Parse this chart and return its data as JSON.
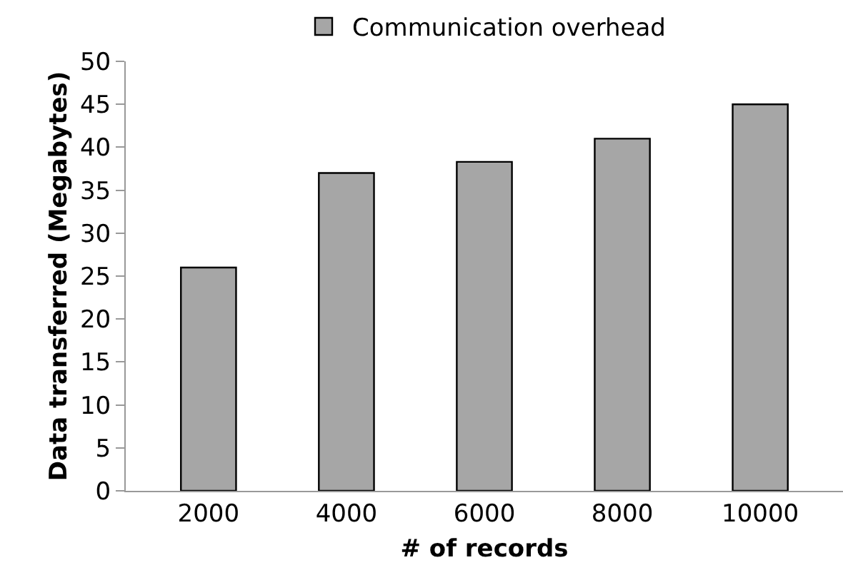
{
  "chart_data": {
    "type": "bar",
    "xlabel": "# of records",
    "ylabel": "Data transferred (Megabytes)",
    "categories": [
      "2000",
      "4000",
      "6000",
      "8000",
      "10000"
    ],
    "series": [
      {
        "name": "Communication overhead",
        "color": "#a6a6a6",
        "values": [
          26,
          37,
          38.3,
          41,
          45
        ]
      }
    ],
    "ylim": [
      0,
      50
    ],
    "yticks": [
      0,
      5,
      10,
      15,
      20,
      25,
      30,
      35,
      40,
      45,
      50
    ],
    "grid": false,
    "legend": "top"
  }
}
